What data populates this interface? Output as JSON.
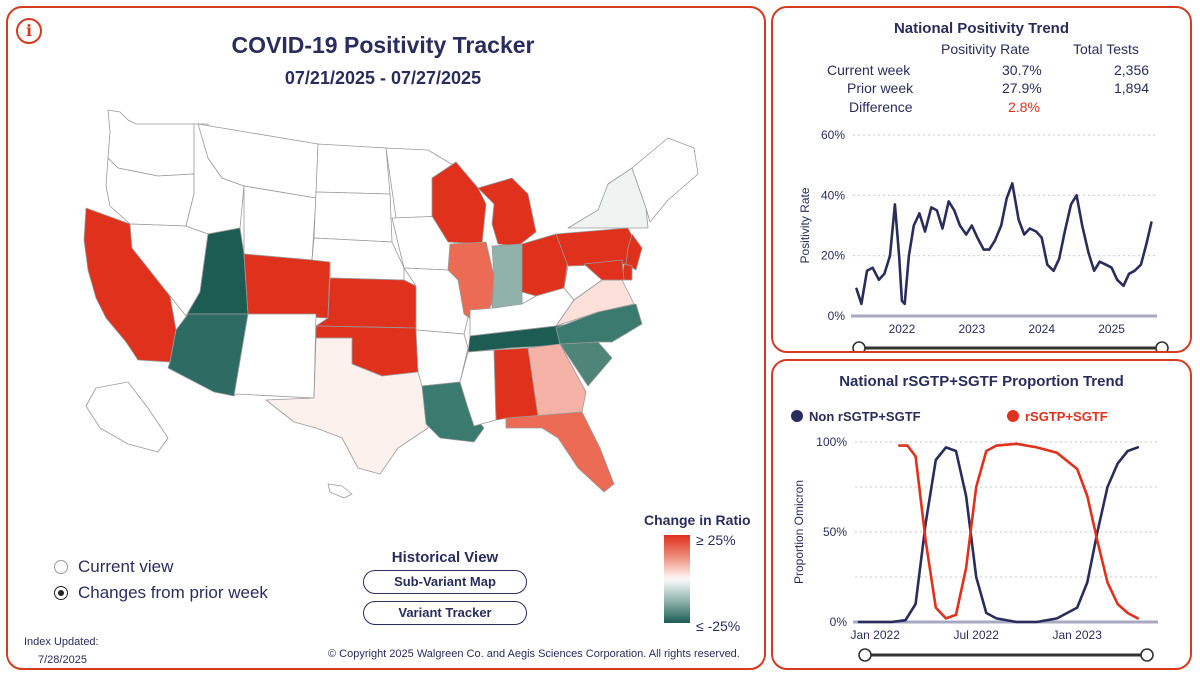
{
  "header": {
    "title": "COVID-19 Positivity Tracker",
    "date_range": "07/21/2025 - 07/27/2025",
    "info_icon": "info-icon"
  },
  "map": {
    "legend": {
      "title": "Change in Ratio",
      "high_label": "≥ 25%",
      "low_label": "≤ -25%"
    },
    "states": [
      {
        "code": "WA",
        "fill": "#ffffff"
      },
      {
        "code": "OR",
        "fill": "#ffffff"
      },
      {
        "code": "CA",
        "fill": "#e0311c"
      },
      {
        "code": "NV",
        "fill": "#ffffff"
      },
      {
        "code": "ID",
        "fill": "#ffffff"
      },
      {
        "code": "MT",
        "fill": "#ffffff"
      },
      {
        "code": "WY",
        "fill": "#ffffff"
      },
      {
        "code": "UT",
        "fill": "#1d5c53"
      },
      {
        "code": "AZ",
        "fill": "#2e6b62"
      },
      {
        "code": "CO",
        "fill": "#e0311c"
      },
      {
        "code": "NM",
        "fill": "#ffffff"
      },
      {
        "code": "ND",
        "fill": "#ffffff"
      },
      {
        "code": "SD",
        "fill": "#ffffff"
      },
      {
        "code": "NE",
        "fill": "#ffffff"
      },
      {
        "code": "KS",
        "fill": "#e0311c"
      },
      {
        "code": "OK",
        "fill": "#e0311c"
      },
      {
        "code": "TX",
        "fill": "#fdf1ee"
      },
      {
        "code": "MN",
        "fill": "#ffffff"
      },
      {
        "code": "IA",
        "fill": "#ffffff"
      },
      {
        "code": "MO",
        "fill": "#ffffff"
      },
      {
        "code": "AR",
        "fill": "#ffffff"
      },
      {
        "code": "LA",
        "fill": "#3a7a6f"
      },
      {
        "code": "WI",
        "fill": "#e0311c"
      },
      {
        "code": "IL",
        "fill": "#ec6b55"
      },
      {
        "code": "MI",
        "fill": "#e0311c"
      },
      {
        "code": "IN",
        "fill": "#8fb3ab"
      },
      {
        "code": "OH",
        "fill": "#e0311c"
      },
      {
        "code": "KY",
        "fill": "#ffffff"
      },
      {
        "code": "TN",
        "fill": "#1d5c53"
      },
      {
        "code": "MS",
        "fill": "#ffffff"
      },
      {
        "code": "AL",
        "fill": "#e0311c"
      },
      {
        "code": "GA",
        "fill": "#f4b3a6"
      },
      {
        "code": "FL",
        "fill": "#ec6b55"
      },
      {
        "code": "SC",
        "fill": "#4f8479"
      },
      {
        "code": "NC",
        "fill": "#3a7a6f"
      },
      {
        "code": "VA",
        "fill": "#fde0da"
      },
      {
        "code": "WV",
        "fill": "#ffffff"
      },
      {
        "code": "PA",
        "fill": "#e0311c"
      },
      {
        "code": "NY",
        "fill": "#eff3f2"
      },
      {
        "code": "NJ",
        "fill": "#e0311c"
      },
      {
        "code": "DE",
        "fill": "#e0311c"
      },
      {
        "code": "MD",
        "fill": "#e0311c"
      },
      {
        "code": "New England",
        "fill": "#ffffff"
      },
      {
        "code": "AK",
        "fill": "#ffffff"
      },
      {
        "code": "HI",
        "fill": "#ffffff"
      }
    ]
  },
  "view_options": [
    {
      "label": "Current view",
      "checked": false
    },
    {
      "label": "Changes from prior week",
      "checked": true
    }
  ],
  "historical": {
    "title": "Historical View",
    "subvariant_label": "Sub-Variant Map",
    "variant_label": "Variant Tracker"
  },
  "footer": {
    "index_label": "Index Updated:",
    "index_date": "7/28/2025",
    "copyright": "© Copyright 2025 Walgreen Co. and Aegis Sciences Corporation. All rights reserved."
  },
  "national_trend": {
    "title": "National Positivity Trend",
    "col_rate": "Positivity Rate",
    "col_tests": "Total Tests",
    "rows": [
      {
        "label": "Current week",
        "rate": "30.7%",
        "tests": "2,356"
      },
      {
        "label": "Prior week",
        "rate": "27.9%",
        "tests": "1,894"
      }
    ],
    "difference_label": "Difference",
    "difference_value": "2.8%"
  },
  "proportion_trend": {
    "title": "National rSGTP+SGTF Proportion Trend"
  },
  "colors": {
    "accent_red": "#e0311c",
    "navy": "#2a2d5c",
    "teal_dark": "#1d5c53",
    "panel_border": "#d63b1f"
  },
  "chart_data": [
    {
      "type": "line",
      "title": "National Positivity Trend",
      "ylabel": "Positivity Rate",
      "xlabel": "",
      "ylim": [
        0,
        60
      ],
      "yticks": [
        "0%",
        "20%",
        "40%",
        "60%"
      ],
      "xticks": [
        "2022",
        "2023",
        "2024",
        "2025"
      ],
      "xtick_values": [
        2022,
        2023,
        2024,
        2025
      ],
      "xlim": [
        2021.3,
        2025.65
      ],
      "series": [
        {
          "name": "Positivity Rate",
          "color": "#2a2d5c",
          "x": [
            2021.35,
            2021.42,
            2021.5,
            2021.58,
            2021.67,
            2021.75,
            2021.83,
            2021.9,
            2021.96,
            2022.0,
            2022.04,
            2022.1,
            2022.17,
            2022.25,
            2022.33,
            2022.42,
            2022.5,
            2022.58,
            2022.67,
            2022.75,
            2022.83,
            2022.92,
            2023.0,
            2023.08,
            2023.17,
            2023.25,
            2023.33,
            2023.42,
            2023.5,
            2023.58,
            2023.67,
            2023.75,
            2023.83,
            2023.92,
            2024.0,
            2024.08,
            2024.17,
            2024.25,
            2024.33,
            2024.42,
            2024.5,
            2024.58,
            2024.67,
            2024.75,
            2024.83,
            2024.92,
            2025.0,
            2025.08,
            2025.17,
            2025.25,
            2025.33,
            2025.42,
            2025.5,
            2025.57
          ],
          "values": [
            9,
            4,
            15,
            16,
            12,
            14,
            20,
            37,
            20,
            5,
            4,
            20,
            30,
            34,
            28,
            36,
            35,
            29,
            38,
            35,
            30,
            27,
            30,
            26,
            22,
            22,
            25,
            30,
            39,
            44,
            32,
            27,
            29,
            28,
            26,
            17,
            15,
            19,
            28,
            37,
            40,
            30,
            21,
            15,
            18,
            17,
            16,
            12,
            10,
            14,
            15,
            17,
            24,
            31
          ]
        }
      ]
    },
    {
      "type": "line",
      "title": "National rSGTP+SGTF Proportion Trend",
      "ylabel": "Proportion Omicron",
      "xlabel": "",
      "ylim": [
        0,
        100
      ],
      "yticks": [
        "0%",
        "50%",
        "100%"
      ],
      "xticks": [
        "Jan 2022",
        "Jul 2022",
        "Jan 2023"
      ],
      "xtick_values": [
        2022.0,
        2022.5,
        2023.0
      ],
      "xlim": [
        2021.9,
        2023.4
      ],
      "legend": "top",
      "series": [
        {
          "name": "Non rSGTP+SGTF",
          "color": "#2a2d5c",
          "x": [
            2021.92,
            2022.0,
            2022.08,
            2022.15,
            2022.2,
            2022.25,
            2022.3,
            2022.35,
            2022.4,
            2022.45,
            2022.5,
            2022.55,
            2022.6,
            2022.7,
            2022.8,
            2022.9,
            2023.0,
            2023.05,
            2023.1,
            2023.15,
            2023.2,
            2023.25,
            2023.3
          ],
          "values": [
            0,
            0,
            0,
            1,
            10,
            55,
            90,
            97,
            95,
            70,
            25,
            5,
            2,
            0,
            0,
            2,
            8,
            22,
            50,
            75,
            88,
            95,
            97
          ]
        },
        {
          "name": "rSGTP+SGTF",
          "color": "#e0311c",
          "x": [
            2022.12,
            2022.16,
            2022.2,
            2022.25,
            2022.3,
            2022.35,
            2022.4,
            2022.45,
            2022.5,
            2022.55,
            2022.6,
            2022.7,
            2022.8,
            2022.9,
            2023.0,
            2023.05,
            2023.1,
            2023.15,
            2023.2,
            2023.25,
            2023.3
          ],
          "values": [
            98,
            98,
            92,
            45,
            8,
            2,
            4,
            30,
            75,
            95,
            98,
            99,
            97,
            94,
            85,
            70,
            45,
            22,
            10,
            5,
            2
          ]
        }
      ]
    }
  ]
}
